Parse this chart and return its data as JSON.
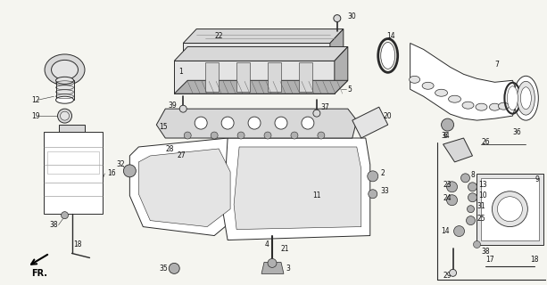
{
  "bg_color": "#f5f5f0",
  "fig_width": 6.13,
  "fig_height": 3.2,
  "dpi": 100,
  "lc": "#2a2a2a",
  "lw": 0.7,
  "fs": 5.5,
  "gray1": "#c8c8c8",
  "gray2": "#d8d8d8",
  "gray3": "#e4e4e4",
  "gray4": "#b0b0b0"
}
